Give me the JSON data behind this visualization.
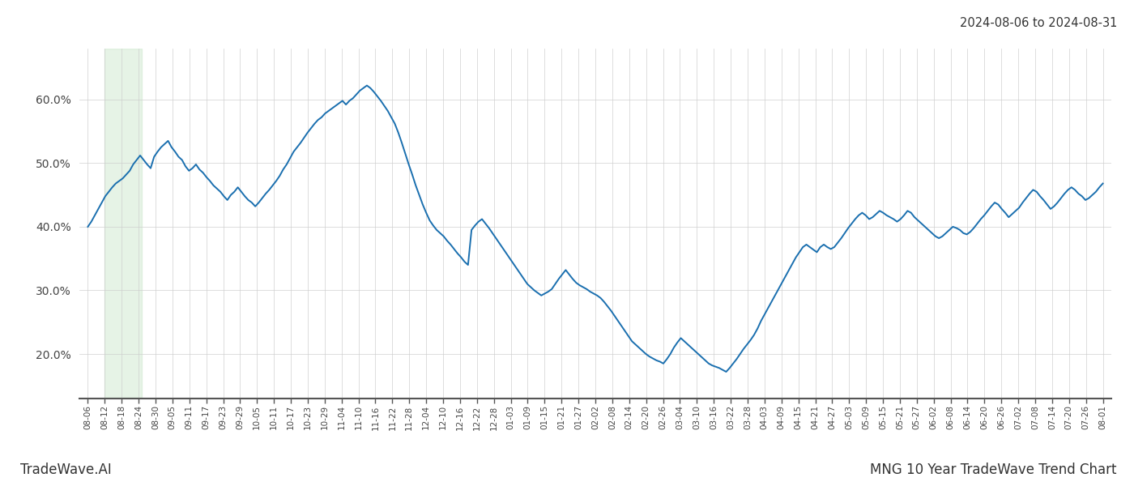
{
  "title_right": "2024-08-06 to 2024-08-31",
  "footer_left": "TradeWave.AI",
  "footer_right": "MNG 10 Year TradeWave Trend Chart",
  "line_color": "#1a6faf",
  "line_width": 1.4,
  "shade_color": "#c8e6c9",
  "shade_alpha": 0.45,
  "background_color": "#ffffff",
  "grid_color": "#cccccc",
  "ylim": [
    0.13,
    0.68
  ],
  "yticks": [
    0.2,
    0.3,
    0.4,
    0.5,
    0.6
  ],
  "ytick_labels": [
    "20.0%",
    "30.0%",
    "40.0%",
    "50.0%",
    "60.0%"
  ],
  "shade_xstart": 1.0,
  "shade_xend": 3.2,
  "x_labels": [
    "08-06",
    "08-12",
    "08-18",
    "08-24",
    "08-30",
    "09-05",
    "09-11",
    "09-17",
    "09-23",
    "09-29",
    "10-05",
    "10-11",
    "10-17",
    "10-23",
    "10-29",
    "11-04",
    "11-10",
    "11-16",
    "11-22",
    "11-28",
    "12-04",
    "12-10",
    "12-16",
    "12-22",
    "12-28",
    "01-03",
    "01-09",
    "01-15",
    "01-21",
    "01-27",
    "02-02",
    "02-08",
    "02-14",
    "02-20",
    "02-26",
    "03-04",
    "03-10",
    "03-16",
    "03-22",
    "03-28",
    "04-03",
    "04-09",
    "04-15",
    "04-21",
    "04-27",
    "05-03",
    "05-09",
    "05-15",
    "05-21",
    "05-27",
    "06-02",
    "06-08",
    "06-14",
    "06-20",
    "06-26",
    "07-02",
    "07-08",
    "07-14",
    "07-20",
    "07-26",
    "08-01"
  ],
  "values": [
    0.4,
    0.408,
    0.418,
    0.428,
    0.438,
    0.448,
    0.455,
    0.462,
    0.468,
    0.472,
    0.476,
    0.482,
    0.488,
    0.498,
    0.505,
    0.512,
    0.505,
    0.498,
    0.492,
    0.51,
    0.518,
    0.525,
    0.53,
    0.535,
    0.525,
    0.518,
    0.51,
    0.505,
    0.495,
    0.488,
    0.492,
    0.498,
    0.49,
    0.485,
    0.478,
    0.472,
    0.465,
    0.46,
    0.455,
    0.448,
    0.442,
    0.45,
    0.455,
    0.462,
    0.455,
    0.448,
    0.442,
    0.438,
    0.432,
    0.438,
    0.445,
    0.452,
    0.458,
    0.465,
    0.472,
    0.48,
    0.49,
    0.498,
    0.508,
    0.518,
    0.525,
    0.532,
    0.54,
    0.548,
    0.555,
    0.562,
    0.568,
    0.572,
    0.578,
    0.582,
    0.586,
    0.59,
    0.594,
    0.598,
    0.592,
    0.598,
    0.602,
    0.608,
    0.614,
    0.618,
    0.622,
    0.618,
    0.612,
    0.605,
    0.598,
    0.59,
    0.582,
    0.572,
    0.562,
    0.548,
    0.532,
    0.515,
    0.498,
    0.482,
    0.465,
    0.45,
    0.435,
    0.422,
    0.41,
    0.402,
    0.395,
    0.39,
    0.385,
    0.378,
    0.372,
    0.365,
    0.358,
    0.352,
    0.345,
    0.34,
    0.395,
    0.402,
    0.408,
    0.412,
    0.405,
    0.398,
    0.39,
    0.382,
    0.374,
    0.366,
    0.358,
    0.35,
    0.342,
    0.334,
    0.326,
    0.318,
    0.31,
    0.305,
    0.3,
    0.296,
    0.292,
    0.295,
    0.298,
    0.302,
    0.31,
    0.318,
    0.325,
    0.332,
    0.325,
    0.318,
    0.312,
    0.308,
    0.305,
    0.302,
    0.298,
    0.295,
    0.292,
    0.288,
    0.282,
    0.275,
    0.268,
    0.26,
    0.252,
    0.244,
    0.236,
    0.228,
    0.22,
    0.215,
    0.21,
    0.205,
    0.2,
    0.196,
    0.193,
    0.19,
    0.188,
    0.185,
    0.192,
    0.2,
    0.21,
    0.218,
    0.225,
    0.22,
    0.215,
    0.21,
    0.205,
    0.2,
    0.195,
    0.19,
    0.185,
    0.182,
    0.18,
    0.178,
    0.175,
    0.172,
    0.178,
    0.185,
    0.192,
    0.2,
    0.208,
    0.215,
    0.222,
    0.23,
    0.24,
    0.252,
    0.262,
    0.272,
    0.282,
    0.292,
    0.302,
    0.312,
    0.322,
    0.332,
    0.342,
    0.352,
    0.36,
    0.368,
    0.372,
    0.368,
    0.364,
    0.36,
    0.368,
    0.372,
    0.368,
    0.365,
    0.368,
    0.375,
    0.382,
    0.39,
    0.398,
    0.405,
    0.412,
    0.418,
    0.422,
    0.418,
    0.412,
    0.415,
    0.42,
    0.425,
    0.422,
    0.418,
    0.415,
    0.412,
    0.408,
    0.412,
    0.418,
    0.425,
    0.422,
    0.415,
    0.41,
    0.405,
    0.4,
    0.395,
    0.39,
    0.385,
    0.382,
    0.385,
    0.39,
    0.395,
    0.4,
    0.398,
    0.395,
    0.39,
    0.388,
    0.392,
    0.398,
    0.405,
    0.412,
    0.418,
    0.425,
    0.432,
    0.438,
    0.435,
    0.428,
    0.422,
    0.415,
    0.42,
    0.425,
    0.43,
    0.438,
    0.445,
    0.452,
    0.458,
    0.455,
    0.448,
    0.442,
    0.435,
    0.428,
    0.432,
    0.438,
    0.445,
    0.452,
    0.458,
    0.462,
    0.458,
    0.452,
    0.448,
    0.442,
    0.445,
    0.45,
    0.455,
    0.462,
    0.468
  ]
}
